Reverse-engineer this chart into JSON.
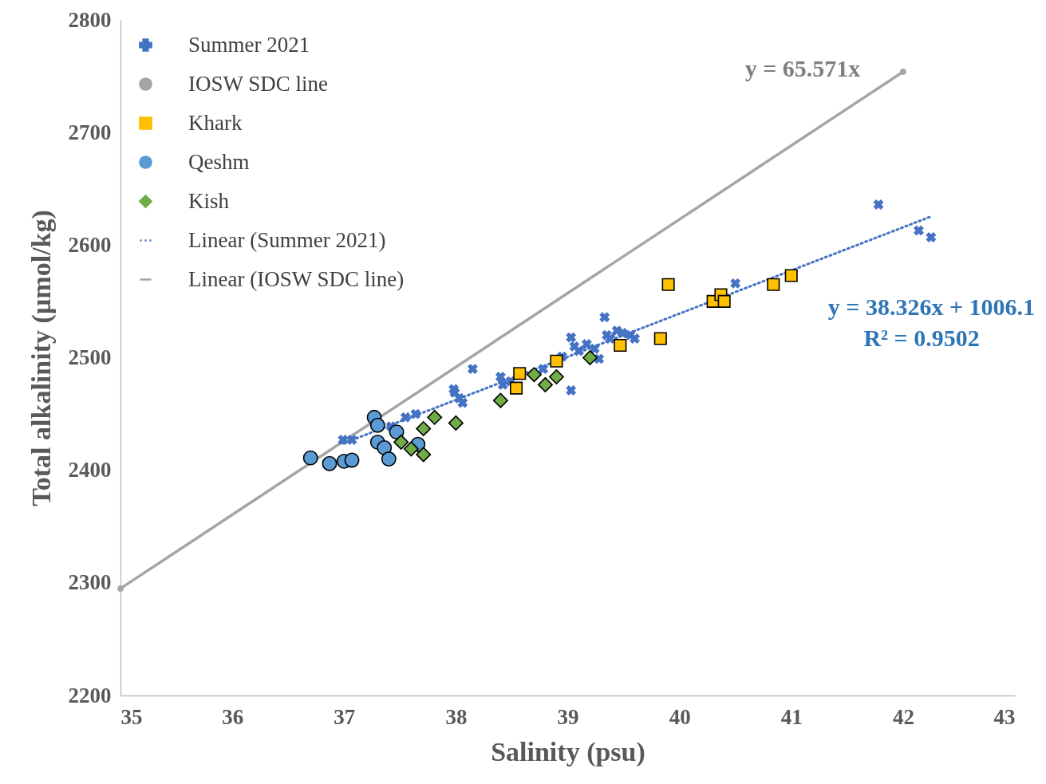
{
  "chart_data": {
    "type": "scatter",
    "xlabel": "Salinity (psu)",
    "ylabel": "Total alkalinity (µmol/kg)",
    "xlim": [
      35,
      43
    ],
    "xticks": [
      35,
      36,
      37,
      38,
      39,
      40,
      41,
      42,
      43
    ],
    "ylim": [
      2200,
      2800
    ],
    "yticks": [
      2200,
      2300,
      2400,
      2500,
      2600,
      2700,
      2800
    ],
    "grid": false,
    "legend": "top left",
    "annotations": [
      "y = 65.571x",
      "y = 38.326x + 1006.1",
      "R² = 0.9502"
    ],
    "series": [
      {
        "name": "Summer 2021",
        "marker": "cross",
        "color": "#4472c4",
        "x": [
          36.99,
          37.07,
          37.42,
          37.55,
          37.64,
          37.98,
          37.99,
          38.03,
          38.06,
          38.15,
          38.4,
          38.42,
          38.49,
          38.78,
          38.92,
          38.95,
          39.03,
          39.03,
          39.06,
          39.1,
          39.17,
          39.24,
          39.28,
          39.33,
          39.35,
          39.38,
          39.44,
          39.49,
          39.56,
          39.6,
          40.5,
          41.78,
          42.14,
          42.25
        ],
        "values": [
          2427,
          2427,
          2439,
          2447,
          2450,
          2472,
          2469,
          2464,
          2460,
          2490,
          2483,
          2476,
          2479,
          2490,
          null,
          2501,
          2518,
          2471,
          2510,
          2506,
          2512,
          2508,
          2499,
          2536,
          2520,
          2517,
          2524,
          2522,
          2520,
          2517,
          2566,
          2636,
          2613,
          2607
        ]
      },
      {
        "name": "IOSW SDC line",
        "marker": "circle",
        "color": "#a5a5a5",
        "x": [
          35,
          42
        ],
        "values": [
          2295,
          2754
        ]
      },
      {
        "name": "Khark",
        "marker": "square",
        "color": "#ffc000",
        "x": [
          38.57,
          38.54,
          38.9,
          39.47,
          39.83,
          39.9,
          40.3,
          40.37,
          40.4,
          40.84,
          41.0
        ],
        "values": [
          2486,
          2473,
          2497,
          2511,
          2517,
          2565,
          2550,
          2556,
          2550,
          2565,
          2573
        ]
      },
      {
        "name": "Qeshm",
        "marker": "circle",
        "color": "#5b9bd5",
        "x": [
          36.7,
          36.87,
          37.0,
          37.07,
          37.27,
          37.3,
          37.3,
          37.36,
          37.4,
          37.47,
          37.66
        ],
        "values": [
          2411,
          2406,
          2408,
          2409,
          2447,
          2440,
          2425,
          2420,
          2410,
          2434,
          2423
        ]
      },
      {
        "name": "Kish",
        "marker": "diamond",
        "color": "#70ad47",
        "x": [
          37.51,
          37.6,
          37.71,
          37.71,
          37.81,
          38.0,
          38.4,
          38.7,
          38.8,
          38.9,
          39.2
        ],
        "values": [
          2425,
          2419,
          2414,
          2437,
          2447,
          2442,
          2462,
          2485,
          2476,
          2483,
          2500
        ]
      },
      {
        "name": "Linear (Summer 2021)",
        "type": "line",
        "line_style": "dotted",
        "color": "#4472c4",
        "x": [
          36.99,
          42.25
        ],
        "values": [
          2423.8,
          2625.4
        ]
      },
      {
        "name": "Linear (IOSW SDC line)",
        "type": "line",
        "line_style": "solid",
        "color": "#a5a5a5",
        "x": [
          35,
          42
        ],
        "values": [
          2295,
          2754
        ]
      }
    ]
  }
}
